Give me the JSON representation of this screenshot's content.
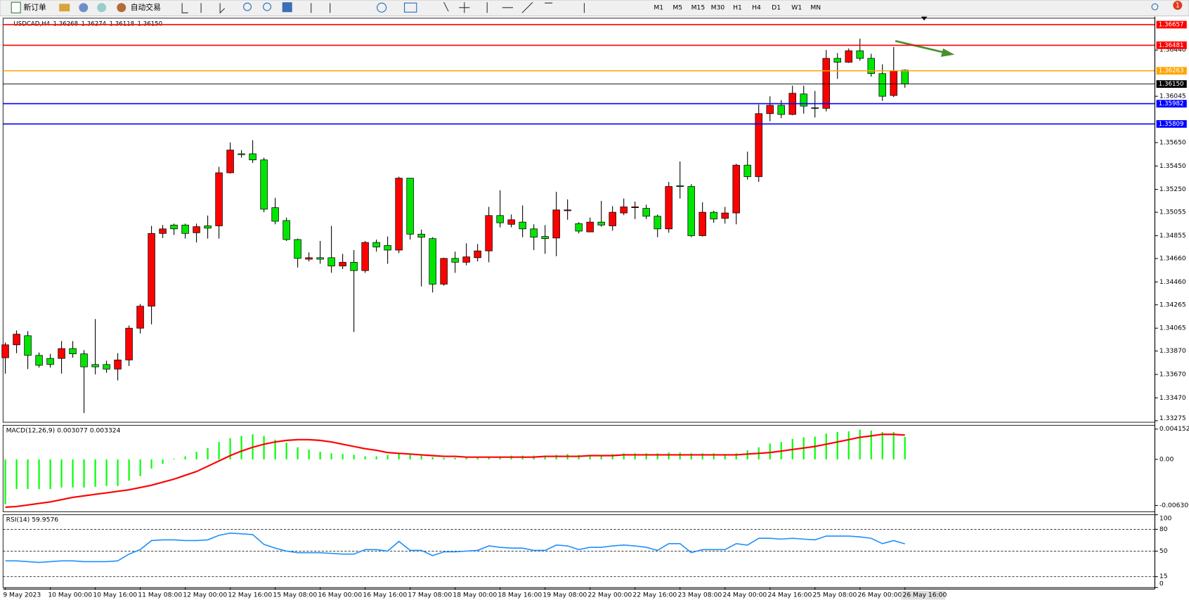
{
  "toolbar": {
    "new_order": "新订单",
    "auto_trading": "自动交易",
    "timeframes": [
      "M1",
      "M5",
      "M15",
      "M30",
      "H1",
      "H4",
      "D1",
      "W1",
      "MN"
    ],
    "alerts": 1
  },
  "chart_data": [
    {
      "type": "candlestick",
      "symbol": "USDCAD,H4",
      "quote": [
        "1.36268",
        "1.36274",
        "1.36118",
        "1.36150"
      ],
      "up_color": "#ff0000",
      "down_color": "#00e600",
      "categories": [
        "9 May 2023",
        null,
        null,
        null,
        "10 May 00:00",
        null,
        null,
        null,
        "10 May 16:00",
        null,
        null,
        null,
        "11 May 08:00",
        null,
        null,
        null,
        "12 May 00:00",
        null,
        null,
        null,
        "12 May 16:00",
        null,
        null,
        null,
        "15 May 08:00",
        null,
        null,
        null,
        "16 May 00:00",
        null,
        null,
        null,
        "16 May 16:00",
        null,
        null,
        null,
        "17 May 08:00",
        null,
        null,
        null,
        "18 May 00:00",
        null,
        null,
        null,
        "18 May 16:00",
        null,
        null,
        null,
        "19 May 08:00",
        null,
        null,
        null,
        "22 May 00:00",
        null,
        null,
        null,
        "22 May 16:00",
        null,
        null,
        null,
        "23 May 08:00",
        null,
        null,
        null,
        "24 May 00:00",
        null,
        null,
        null,
        "24 May 16:00",
        null,
        null,
        null,
        "25 May 08:00",
        null,
        null,
        null,
        "26 May 00:00",
        null,
        null,
        null,
        "26 May 16:00"
      ],
      "open": [
        1.33813,
        1.33923,
        1.34001,
        1.33833,
        1.33807,
        1.33807,
        1.33891,
        1.33846,
        1.33755,
        1.33755,
        1.33716,
        1.33794,
        1.34065,
        1.34253,
        1.34874,
        1.34946,
        1.34946,
        1.3488,
        1.34939,
        1.34939,
        1.35392,
        1.35554,
        1.35554,
        1.35502,
        1.35094,
        1.34984,
        1.34822,
        1.34654,
        1.34667,
        1.34667,
        1.34596,
        1.34628,
        1.34557,
        1.34797,
        1.34771,
        1.34732,
        1.35346,
        1.34868,
        1.3483,
        1.34441,
        1.34661,
        1.34628,
        1.34667,
        1.34725,
        1.35027,
        1.34952,
        1.34971,
        1.34913,
        1.34848,
        1.34835,
        1.35068,
        1.34958,
        1.34887,
        1.34971,
        1.34939,
        1.35049,
        1.35094,
        1.35088,
        1.35021,
        1.34913,
        1.35282,
        1.35275,
        1.34855,
        1.35055,
        1.35003,
        1.35049,
        1.35457,
        1.35359,
        1.35897,
        1.35968,
        1.3589,
        1.36065,
        1.35948,
        1.35942,
        1.36369,
        1.36336,
        1.36434,
        1.36369,
        1.36239,
        1.36052,
        1.36268
      ],
      "high": [
        1.33943,
        1.34046,
        1.3404,
        1.33858,
        1.33846,
        1.33955,
        1.33955,
        1.33878,
        1.34143,
        1.33787,
        1.33852,
        1.34088,
        1.34272,
        1.34939,
        1.34946,
        1.34958,
        1.34958,
        1.34958,
        1.35027,
        1.35443,
        1.35651,
        1.35586,
        1.3567,
        1.35521,
        1.35178,
        1.3501,
        1.3483,
        1.34712,
        1.3481,
        1.34939,
        1.347,
        1.34732,
        1.3481,
        1.34822,
        1.34848,
        1.35359,
        1.35346,
        1.34907,
        1.34842,
        1.34667,
        1.34719,
        1.3479,
        1.34784,
        1.35101,
        1.35243,
        1.35036,
        1.35113,
        1.34952,
        1.34946,
        1.3523,
        1.35165,
        1.34971,
        1.3501,
        1.35152,
        1.35107,
        1.35172,
        1.35146,
        1.3512,
        1.35036,
        1.35314,
        1.35489,
        1.35295,
        1.3514,
        1.35068,
        1.35101,
        1.35469,
        1.35573,
        1.35974,
        1.36045,
        1.36013,
        1.36136,
        1.36136,
        1.36091,
        1.3644,
        1.36414,
        1.36453,
        1.36537,
        1.36408,
        1.36318,
        1.36466,
        1.36274
      ],
      "low": [
        1.33677,
        1.33852,
        1.33716,
        1.33729,
        1.33729,
        1.33677,
        1.33813,
        1.33341,
        1.33671,
        1.33684,
        1.33619,
        1.33742,
        1.3402,
        1.34098,
        1.34835,
        1.34861,
        1.3483,
        1.34797,
        1.3483,
        1.3483,
        1.35386,
        1.35521,
        1.35476,
        1.35055,
        1.34952,
        1.3481,
        1.34583,
        1.34635,
        1.34615,
        1.34538,
        1.3457,
        1.34033,
        1.34538,
        1.34719,
        1.34615,
        1.34706,
        1.34822,
        1.34421,
        1.3437,
        1.34428,
        1.34538,
        1.34602,
        1.34635,
        1.34628,
        1.34926,
        1.34926,
        1.34842,
        1.34732,
        1.347,
        1.3468,
        1.34991,
        1.34874,
        1.34887,
        1.34932,
        1.34898,
        1.3503,
        1.34997,
        1.34997,
        1.34842,
        1.3488,
        1.35172,
        1.34842,
        1.34848,
        1.34965,
        1.34958,
        1.34952,
        1.35334,
        1.35314,
        1.35832,
        1.35858,
        1.35884,
        1.35897,
        1.35864,
        1.35916,
        1.36194,
        1.3633,
        1.36349,
        1.36213,
        1.36006,
        1.36039,
        1.36118
      ],
      "close": [
        1.33923,
        1.34014,
        1.33833,
        1.33748,
        1.33755,
        1.33891,
        1.33846,
        1.33735,
        1.33735,
        1.33716,
        1.33794,
        1.34065,
        1.34253,
        1.34874,
        1.34913,
        1.34913,
        1.34874,
        1.34932,
        1.34919,
        1.35392,
        1.35586,
        1.35547,
        1.35502,
        1.35081,
        1.34978,
        1.34822,
        1.34661,
        1.34667,
        1.34654,
        1.34596,
        1.34628,
        1.34557,
        1.34797,
        1.34758,
        1.34732,
        1.35346,
        1.34868,
        1.34842,
        1.34441,
        1.34661,
        1.34628,
        1.34674,
        1.34725,
        1.35027,
        1.34965,
        1.34991,
        1.34913,
        1.34842,
        1.3483,
        1.35075,
        1.35075,
        1.34894,
        1.34971,
        1.34946,
        1.35055,
        1.35101,
        1.35101,
        1.35021,
        1.34913,
        1.35275,
        1.35275,
        1.34855,
        1.35055,
        1.34997,
        1.35049,
        1.35457,
        1.35359,
        1.35897,
        1.35968,
        1.3589,
        1.36071,
        1.35961,
        1.35942,
        1.36369,
        1.36336,
        1.36434,
        1.36369,
        1.36239,
        1.36045,
        1.36259,
        1.3615
      ],
      "ylim": [
        1.33262,
        1.36712
      ],
      "yticks": [
        {
          "value": 1.3644,
          "label": "1.36440"
        },
        1.36045,
        {
          "value": 1.3565,
          "label": "1.35650"
        },
        {
          "value": 1.3545,
          "label": "1.35450"
        },
        {
          "value": 1.3525,
          "label": "1.35250"
        },
        1.35055,
        1.34855,
        {
          "value": 1.3466,
          "label": "1.34660"
        },
        {
          "value": 1.3446,
          "label": "1.34460"
        },
        1.34265,
        1.34065,
        {
          "value": 1.3387,
          "label": "1.33870"
        },
        {
          "value": 1.3367,
          "label": "1.33670"
        },
        {
          "value": 1.3347,
          "label": "1.33470"
        },
        1.33275
      ],
      "levels": [
        {
          "value": 1.36657,
          "color": "#ff0000"
        },
        {
          "value": 1.36481,
          "color": "#ff0000"
        },
        {
          "value": 1.36263,
          "color": "#ffa500"
        },
        {
          "value": 1.3615,
          "label": "1.36150",
          "color": "#000000"
        },
        {
          "value": 1.35982,
          "color": "#0000ff"
        },
        {
          "value": 1.35809,
          "color": "#0000ff"
        }
      ]
    },
    {
      "type": "macd",
      "title": "MACD(12,26,9) 0.003077 0.003324",
      "series": [
        {
          "color": "#00ff00",
          "values": [
            -0.00614,
            -0.00406,
            -0.00406,
            -0.00406,
            -0.00406,
            -0.00385,
            -0.00385,
            -0.00385,
            -0.00374,
            -0.00364,
            -0.00364,
            -0.00291,
            -0.00229,
            -0.00125,
            -0.00062,
            0.0001,
            0.00042,
            0.00104,
            0.00156,
            0.00239,
            0.00291,
            0.00322,
            0.00343,
            0.00322,
            0.0027,
            0.00229,
            0.00166,
            0.00135,
            0.00104,
            0.00083,
            0.00073,
            0.00062,
            0.00042,
            0.00042,
            0.00062,
            0.00083,
            0.00062,
            0.00052,
            0.00031,
            0.00021,
            0.00021,
            0.00021,
            0.00021,
            0.00031,
            0.00042,
            0.00052,
            0.00052,
            0.00052,
            0.00052,
            0.00062,
            0.00073,
            0.00062,
            0.00062,
            0.00062,
            0.00073,
            0.00083,
            0.00083,
            0.00083,
            0.00083,
            0.00094,
            0.00094,
            0.00083,
            0.00083,
            0.00083,
            0.00073,
            0.00083,
            0.00125,
            0.00166,
            0.00218,
            0.00239,
            0.00281,
            0.00302,
            0.00312,
            0.00354,
            0.00374,
            0.00385,
            0.00406,
            0.00395,
            0.00374,
            0.00374,
            0.003077
          ]
        },
        {
          "color": "#ff0000",
          "values": [
            -0.00655,
            -0.00645,
            -0.00624,
            -0.00603,
            -0.00582,
            -0.00551,
            -0.0052,
            -0.00499,
            -0.00478,
            -0.00458,
            -0.00437,
            -0.00416,
            -0.00385,
            -0.00354,
            -0.00312,
            -0.0027,
            -0.00218,
            -0.00166,
            -0.00094,
            -0.00021,
            0.00052,
            0.00114,
            0.00166,
            0.00208,
            0.00239,
            0.0026,
            0.0027,
            0.0027,
            0.0026,
            0.00239,
            0.00208,
            0.00177,
            0.00146,
            0.00125,
            0.00094,
            0.00083,
            0.00073,
            0.00062,
            0.00052,
            0.00042,
            0.00042,
            0.00031,
            0.00031,
            0.00031,
            0.00031,
            0.00031,
            0.00031,
            0.00031,
            0.00042,
            0.00042,
            0.00042,
            0.00042,
            0.00052,
            0.00052,
            0.00052,
            0.00062,
            0.00062,
            0.00062,
            0.00062,
            0.00062,
            0.00062,
            0.00062,
            0.00062,
            0.00062,
            0.00062,
            0.00062,
            0.00073,
            0.00083,
            0.00094,
            0.00114,
            0.00135,
            0.00156,
            0.00177,
            0.00208,
            0.00239,
            0.0027,
            0.00302,
            0.00322,
            0.00343,
            0.00343,
            0.003324
          ]
        }
      ],
      "ylim": [
        -0.00716,
        0.00467
      ],
      "yticks": [
        0.004152,
        {
          "value": 0,
          "label": "0.00"
        },
        -0.006309
      ]
    },
    {
      "type": "rsi",
      "title": "RSI(14) 59.9576",
      "color": "#1e90ff",
      "values": [
        36.6,
        36.6,
        35.5,
        34.5,
        35.5,
        36.6,
        36.6,
        35.5,
        35.5,
        35.5,
        36.6,
        45.9,
        52.1,
        64.5,
        65.5,
        65.5,
        64.5,
        64.5,
        65.5,
        71.7,
        74.8,
        73.8,
        72.7,
        59.3,
        54.1,
        50.0,
        47.9,
        47.9,
        47.9,
        46.9,
        45.9,
        45.9,
        52.1,
        52.1,
        50.0,
        63.4,
        51.0,
        51.0,
        43.8,
        49.0,
        49.0,
        50.0,
        51.0,
        57.2,
        55.2,
        54.1,
        54.1,
        51.0,
        51.0,
        58.3,
        57.2,
        52.1,
        55.2,
        55.2,
        57.2,
        58.3,
        57.2,
        55.2,
        51.0,
        60.3,
        60.3,
        47.9,
        52.1,
        52.1,
        52.1,
        60.3,
        58.3,
        67.6,
        67.6,
        66.5,
        67.6,
        66.5,
        65.5,
        70.7,
        70.7,
        70.7,
        69.6,
        67.6,
        60.3,
        64.5,
        59.9576
      ],
      "ylim": [
        0,
        100
      ],
      "yticks": [
        100,
        80,
        50,
        15,
        0
      ],
      "grid": "dashed"
    }
  ]
}
